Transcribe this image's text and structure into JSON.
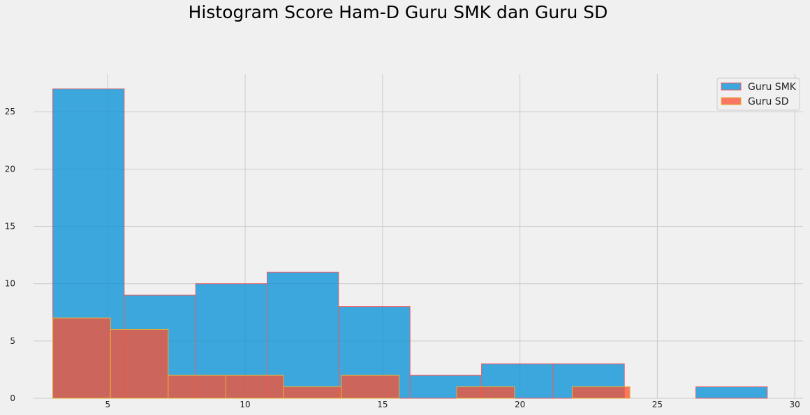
{
  "chart_data": {
    "type": "bar",
    "title": "Histogram Score Ham-D Guru SMK dan Guru SD",
    "xlabel": "",
    "ylabel": "",
    "xlim": [
      2.3,
      30.3
    ],
    "ylim": [
      0,
      28.3
    ],
    "xticks": [
      5,
      10,
      15,
      20,
      25,
      30
    ],
    "yticks": [
      0,
      5,
      10,
      15,
      20,
      25
    ],
    "grid": true,
    "legend_position": "top-right",
    "series": [
      {
        "name": "Guru SMK",
        "color": "#008fd5",
        "edge_color": "#e5616a",
        "bins": [
          {
            "start": 3.0,
            "end": 5.6,
            "value": 27
          },
          {
            "start": 5.6,
            "end": 8.2,
            "value": 9
          },
          {
            "start": 8.2,
            "end": 10.8,
            "value": 10
          },
          {
            "start": 10.8,
            "end": 13.4,
            "value": 11
          },
          {
            "start": 13.4,
            "end": 16.0,
            "value": 8
          },
          {
            "start": 16.0,
            "end": 18.6,
            "value": 2
          },
          {
            "start": 18.6,
            "end": 21.2,
            "value": 3
          },
          {
            "start": 21.2,
            "end": 23.8,
            "value": 3
          },
          {
            "start": 23.8,
            "end": 26.4,
            "value": 0
          },
          {
            "start": 26.4,
            "end": 29.0,
            "value": 1
          }
        ]
      },
      {
        "name": "Guru SD",
        "color": "#fc4f30",
        "edge_color": "#e5ae38",
        "bins": [
          {
            "start": 3.0,
            "end": 5.1,
            "value": 7
          },
          {
            "start": 5.1,
            "end": 7.2,
            "value": 6
          },
          {
            "start": 7.2,
            "end": 9.3,
            "value": 2
          },
          {
            "start": 9.3,
            "end": 11.4,
            "value": 2
          },
          {
            "start": 11.4,
            "end": 13.5,
            "value": 1
          },
          {
            "start": 13.5,
            "end": 15.6,
            "value": 2
          },
          {
            "start": 15.6,
            "end": 17.7,
            "value": 0
          },
          {
            "start": 17.7,
            "end": 19.8,
            "value": 1
          },
          {
            "start": 19.8,
            "end": 21.9,
            "value": 0
          },
          {
            "start": 21.9,
            "end": 24.0,
            "value": 1
          }
        ]
      }
    ]
  }
}
